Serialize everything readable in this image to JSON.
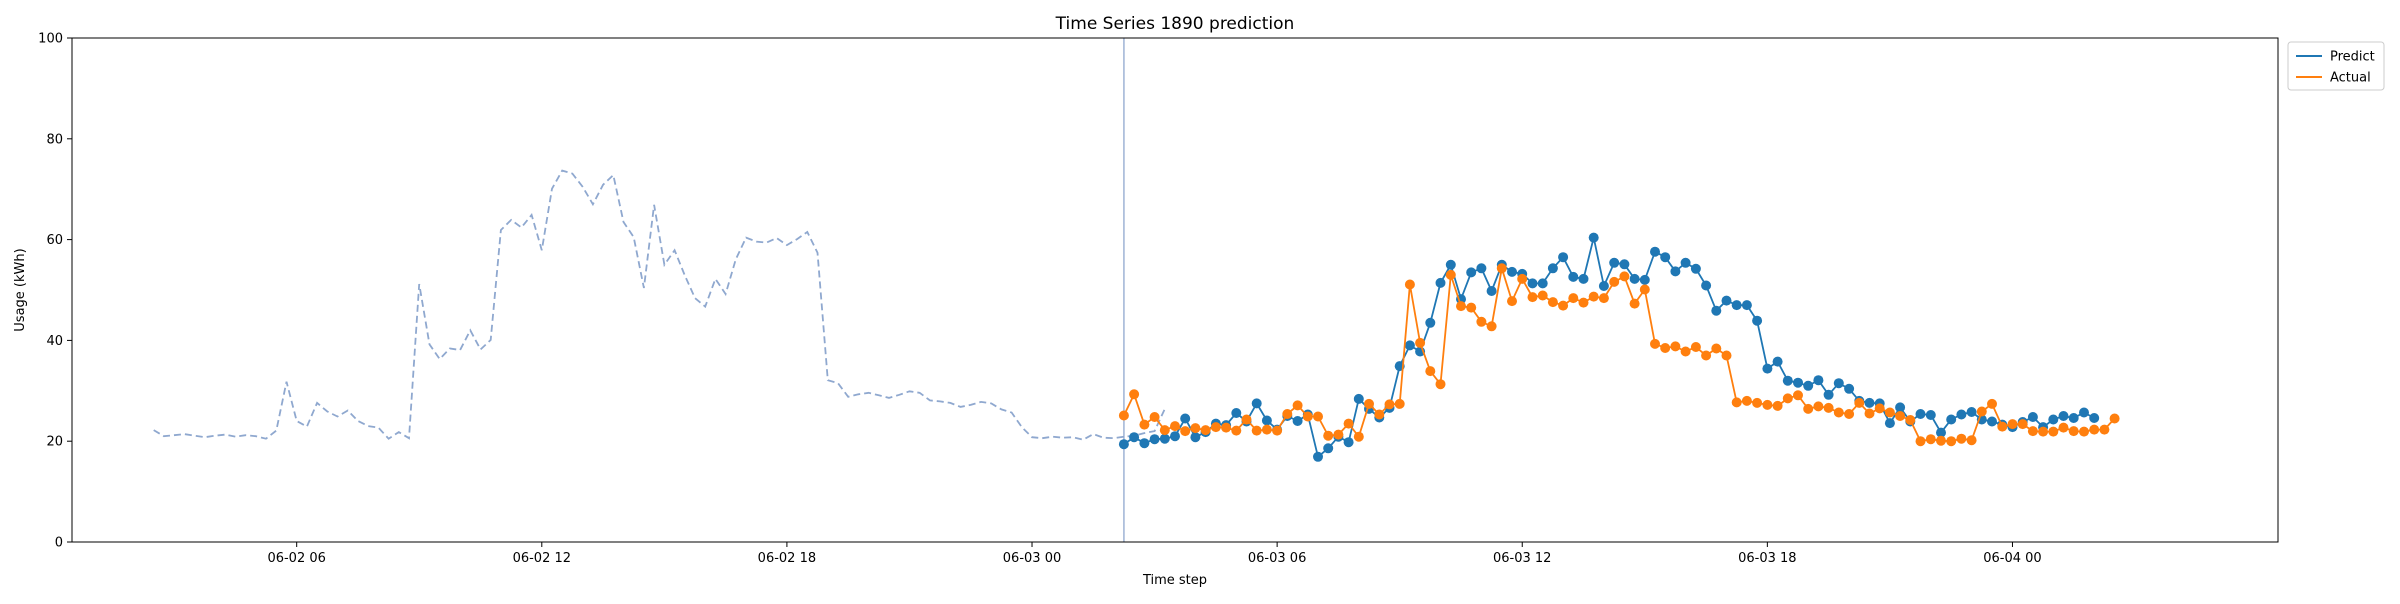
{
  "chart_data": {
    "type": "line",
    "title": "Time Series 1890 prediction",
    "xlabel": "Time step",
    "ylabel": "Usage (kWh)",
    "ylim": [
      0,
      100
    ],
    "yticks": [
      0,
      20,
      40,
      60,
      80,
      100
    ],
    "xlim": [
      "06-02 00:30",
      "06-04 06:30"
    ],
    "xticks": [
      {
        "t": "06-02 06:00",
        "label": "06-02 06"
      },
      {
        "t": "06-02 12:00",
        "label": "06-02 12"
      },
      {
        "t": "06-02 18:00",
        "label": "06-02 18"
      },
      {
        "t": "06-03 00:00",
        "label": "06-03 00"
      },
      {
        "t": "06-03 06:00",
        "label": "06-03 06"
      },
      {
        "t": "06-03 12:00",
        "label": "06-03 12"
      },
      {
        "t": "06-03 18:00",
        "label": "06-03 18"
      },
      {
        "t": "06-04 00:00",
        "label": "06-04 00"
      }
    ],
    "grid": false,
    "legend_position": "top-right, outside plot",
    "forecast_start": "06-03 02:15",
    "history": {
      "start": "06-02 02:30",
      "step_minutes": 15,
      "line_style": "dashed",
      "color": "#8fa8cf",
      "values": [
        22.2,
        21.0,
        21.2,
        21.4,
        21.1,
        20.8,
        21.1,
        21.3,
        20.9,
        21.2,
        21.0,
        20.5,
        22.1,
        31.8,
        24.0,
        22.9,
        27.6,
        25.9,
        24.9,
        26.1,
        24.0,
        23.0,
        22.7,
        20.5,
        21.8,
        20.6,
        51.2,
        39.2,
        36.3,
        38.4,
        38.1,
        42.0,
        38.2,
        40.1,
        61.9,
        63.9,
        62.4,
        64.9,
        57.9,
        70.1,
        73.7,
        73.1,
        70.5,
        67.0,
        70.9,
        72.8,
        63.5,
        60.5,
        50.4,
        66.9,
        55.0,
        57.9,
        52.9,
        48.4,
        46.7,
        52.2,
        49.2,
        56.1,
        60.4,
        59.6,
        59.4,
        60.3,
        58.9,
        60.1,
        61.5,
        57.4,
        32.1,
        31.5,
        28.8,
        29.3,
        29.6,
        29.1,
        28.6,
        29.2,
        29.9,
        29.6,
        28.1,
        27.9,
        27.6,
        26.8,
        27.2,
        27.8,
        27.5,
        26.3,
        25.7,
        22.8,
        20.8,
        20.6,
        20.9,
        20.7,
        20.8,
        20.3,
        21.4,
        20.7,
        20.6,
        20.9,
        21.1,
        21.6,
        22.0,
        26.4
      ]
    },
    "series": [
      {
        "name": "Predict",
        "color": "#1f77b4",
        "start": "06-03 02:15",
        "step_minutes": 15,
        "values": [
          19.4,
          20.8,
          19.6,
          20.4,
          20.5,
          21.0,
          24.5,
          20.8,
          21.8,
          23.5,
          23.2,
          25.6,
          23.9,
          27.5,
          24.1,
          22.3,
          25.0,
          24.0,
          25.3,
          16.9,
          18.6,
          20.9,
          19.8,
          28.4,
          26.4,
          24.7,
          26.6,
          34.9,
          39.0,
          37.8,
          43.5,
          51.4,
          55.0,
          48.2,
          53.5,
          54.3,
          49.8,
          55.0,
          53.6,
          53.2,
          51.3,
          51.3,
          54.3,
          56.5,
          52.6,
          52.2,
          60.4,
          50.8,
          55.4,
          55.1,
          52.2,
          52.0,
          57.6,
          56.5,
          53.7,
          55.4,
          54.2,
          50.9,
          45.9,
          47.9,
          47.0,
          47.0,
          43.9,
          34.4,
          35.8,
          32.0,
          31.6,
          31.0,
          32.1,
          29.2,
          31.5,
          30.4,
          28.0,
          27.6,
          27.5,
          23.6,
          26.7,
          23.9,
          25.4,
          25.2,
          21.7,
          24.3,
          25.3,
          25.8,
          24.3,
          23.9,
          23.3,
          22.8,
          23.8,
          24.8,
          22.8,
          24.3,
          25.0,
          24.6,
          25.7,
          24.6
        ]
      },
      {
        "name": "Actual",
        "color": "#ff7f0e",
        "start": "06-03 02:15",
        "step_minutes": 15,
        "values": [
          25.1,
          29.3,
          23.3,
          24.8,
          22.2,
          23.0,
          22.0,
          22.6,
          22.2,
          22.8,
          22.7,
          22.1,
          24.3,
          22.1,
          22.3,
          22.1,
          25.4,
          27.1,
          24.9,
          24.9,
          21.1,
          21.3,
          23.5,
          20.9,
          27.4,
          25.3,
          27.3,
          27.4,
          51.1,
          39.5,
          33.9,
          31.3,
          53.0,
          46.8,
          46.5,
          43.7,
          42.8,
          54.3,
          47.8,
          52.2,
          48.6,
          48.9,
          47.6,
          46.9,
          48.4,
          47.5,
          48.7,
          48.4,
          51.6,
          52.7,
          47.3,
          50.1,
          39.3,
          38.5,
          38.8,
          37.8,
          38.7,
          37.0,
          38.4,
          37.0,
          27.7,
          28.0,
          27.6,
          27.2,
          27.0,
          28.5,
          29.1,
          26.4,
          26.9,
          26.6,
          25.7,
          25.4,
          27.6,
          25.5,
          26.5,
          25.7,
          25.0,
          24.2,
          20.0,
          20.4,
          20.1,
          20.0,
          20.5,
          20.2,
          25.9,
          27.4,
          22.9,
          23.4,
          23.4,
          22.0,
          21.9,
          21.9,
          22.7,
          22.0,
          21.9,
          22.3,
          22.3,
          24.5
        ]
      }
    ]
  }
}
